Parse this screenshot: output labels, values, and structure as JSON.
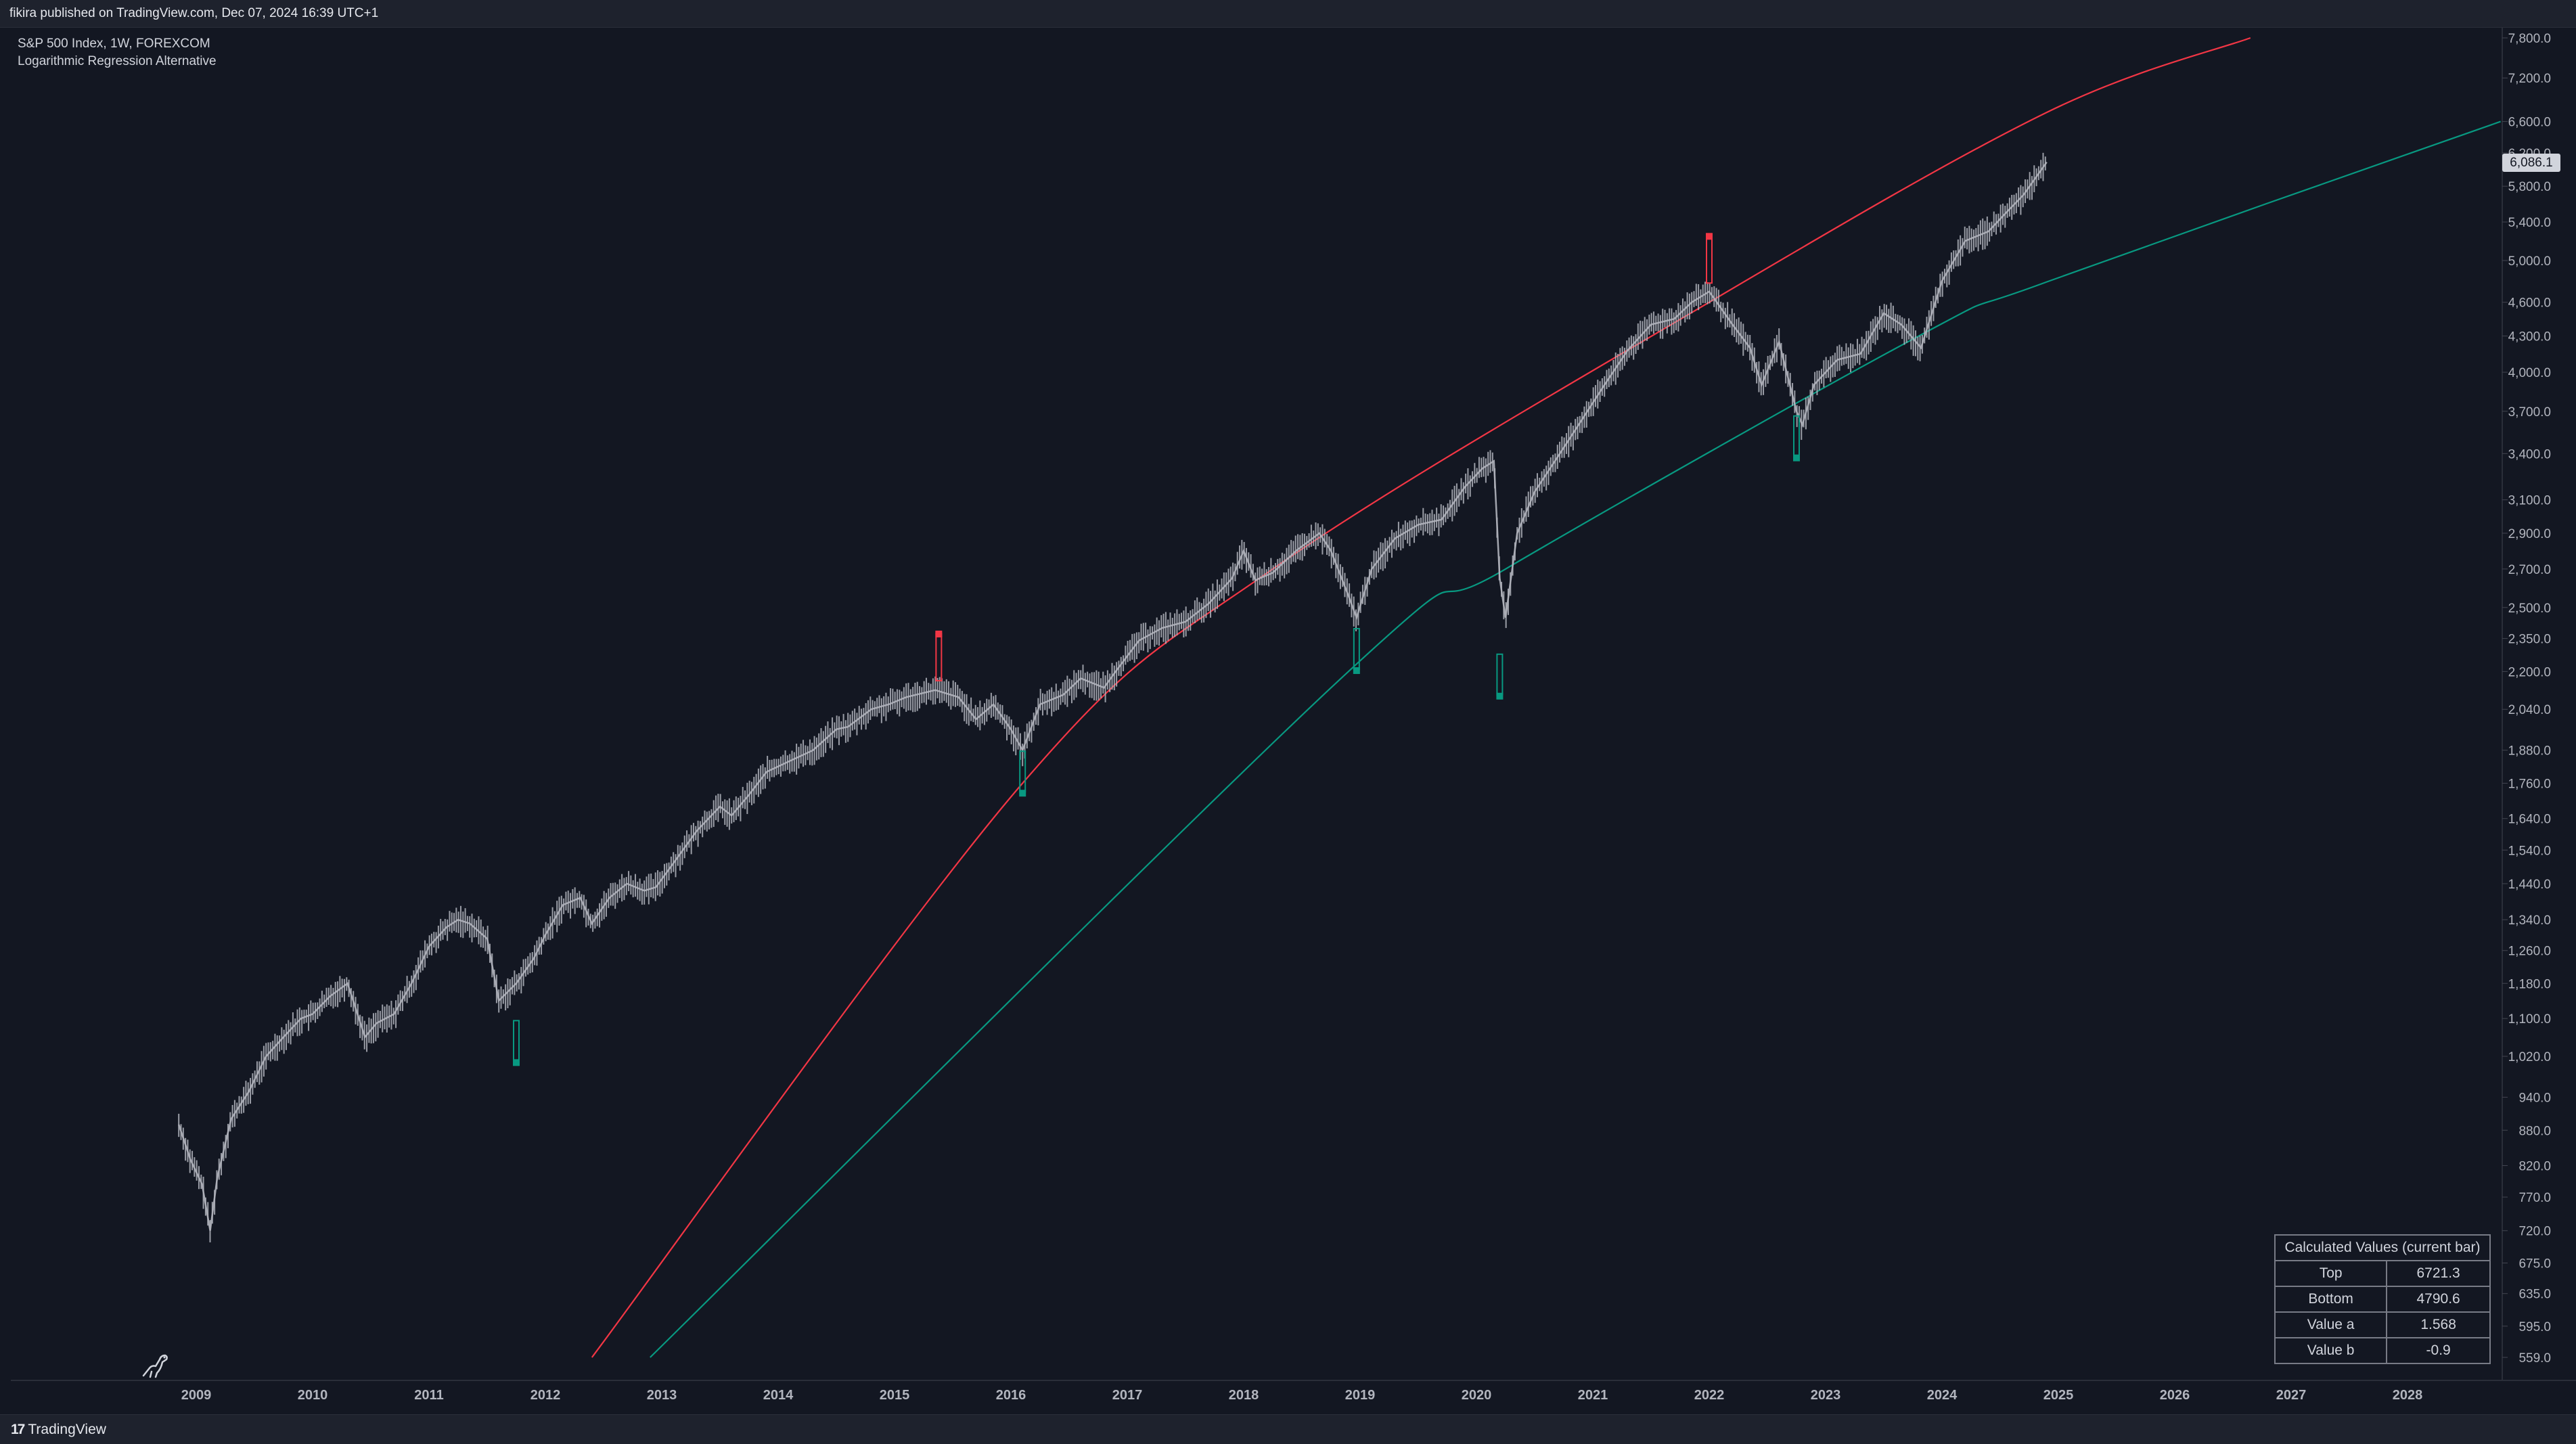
{
  "header": {
    "published_text": "fikira published on TradingView.com, Dec 07, 2024 16:39 UTC+1"
  },
  "legend": {
    "symbol_line": "S&P 500 Index, 1W, FOREXCOM",
    "indicator_line": "Logarithmic Regression Alternative"
  },
  "footer": {
    "brand_text": "TradingView",
    "brand_icon": "tradingview-logo-icon"
  },
  "current_price_label": "6,086.1",
  "colors": {
    "background": "#131722",
    "top_line": "#f23645",
    "bottom_line": "#089981",
    "candles": "#b2b5be",
    "axis_text": "#b2b5be"
  },
  "values_table": {
    "title": "Calculated Values (current bar)",
    "rows": [
      {
        "label": "Top",
        "value": "6721.3"
      },
      {
        "label": "Bottom",
        "value": "4790.6"
      },
      {
        "label": "Value a",
        "value": "1.568"
      },
      {
        "label": "Value b",
        "value": "-0.9"
      }
    ]
  },
  "chart_data": {
    "type": "line",
    "scale": "log",
    "x_tick_labels": [
      "2009",
      "2010",
      "2011",
      "2012",
      "2013",
      "2014",
      "2015",
      "2016",
      "2017",
      "2018",
      "2019",
      "2020",
      "2021",
      "2022",
      "2023",
      "2024",
      "2025",
      "2026",
      "2027",
      "2028"
    ],
    "y_tick_labels": [
      "7,800.0",
      "7,200.0",
      "6,600.0",
      "6,200.0",
      "5,800.0",
      "5,400.0",
      "5,000.0",
      "4,600.0",
      "4,300.0",
      "4,000.0",
      "3,700.0",
      "3,400.0",
      "3,100.0",
      "2,900.0",
      "2,700.0",
      "2,500.0",
      "2,350.0",
      "2,200.0",
      "2,040.0",
      "1,880.0",
      "1,760.0",
      "1,640.0",
      "1,540.0",
      "1,440.0",
      "1,340.0",
      "1,260.0",
      "1,180.0",
      "1,100.0",
      "1,020.0",
      "940.0",
      "880.0",
      "820.0",
      "770.0",
      "720.0",
      "675.0",
      "635.0",
      "595.0",
      "559.0"
    ],
    "y_tick_values": [
      7800,
      7200,
      6600,
      6200,
      5800,
      5400,
      5000,
      4600,
      4300,
      4000,
      3700,
      3400,
      3100,
      2900,
      2700,
      2500,
      2350,
      2200,
      2040,
      1880,
      1760,
      1640,
      1540,
      1440,
      1340,
      1260,
      1180,
      1100,
      1020,
      940,
      880,
      820,
      770,
      720,
      675,
      635,
      595,
      559
    ],
    "price_series": {
      "name": "S&P 500 Index",
      "x": [
        2008.85,
        2008.95,
        2009.05,
        2009.12,
        2009.18,
        2009.3,
        2009.45,
        2009.6,
        2009.75,
        2009.9,
        2010.0,
        2010.15,
        2010.3,
        2010.45,
        2010.55,
        2010.7,
        2010.85,
        2011.0,
        2011.15,
        2011.25,
        2011.35,
        2011.5,
        2011.6,
        2011.75,
        2011.9,
        2012.0,
        2012.15,
        2012.3,
        2012.4,
        2012.55,
        2012.7,
        2012.85,
        2012.95,
        2013.1,
        2013.3,
        2013.5,
        2013.6,
        2013.75,
        2013.9,
        2014.1,
        2014.3,
        2014.5,
        2014.6,
        2014.8,
        2014.95,
        2015.1,
        2015.35,
        2015.55,
        2015.7,
        2015.85,
        2016.0,
        2016.1,
        2016.25,
        2016.45,
        2016.6,
        2016.8,
        2016.9,
        2017.1,
        2017.3,
        2017.5,
        2017.7,
        2017.9,
        2018.0,
        2018.1,
        2018.25,
        2018.45,
        2018.65,
        2018.75,
        2018.9,
        2018.97,
        2019.1,
        2019.3,
        2019.5,
        2019.7,
        2019.9,
        2020.05,
        2020.15,
        2020.2,
        2020.25,
        2020.35,
        2020.5,
        2020.7,
        2020.9,
        2021.1,
        2021.3,
        2021.5,
        2021.7,
        2021.85,
        2022.0,
        2022.2,
        2022.35,
        2022.45,
        2022.6,
        2022.75,
        2022.8,
        2022.9,
        2023.1,
        2023.3,
        2023.5,
        2023.65,
        2023.82,
        2024.0,
        2024.2,
        2024.4,
        2024.55,
        2024.7,
        2024.9
      ],
      "close": [
        890,
        830,
        790,
        720,
        800,
        900,
        950,
        1020,
        1060,
        1100,
        1110,
        1150,
        1180,
        1060,
        1090,
        1110,
        1180,
        1270,
        1320,
        1340,
        1330,
        1290,
        1140,
        1180,
        1240,
        1300,
        1380,
        1400,
        1330,
        1400,
        1440,
        1420,
        1430,
        1500,
        1600,
        1680,
        1650,
        1720,
        1800,
        1840,
        1880,
        1960,
        1970,
        2040,
        2060,
        2090,
        2120,
        2090,
        2000,
        2060,
        1960,
        1880,
        2060,
        2100,
        2170,
        2130,
        2200,
        2340,
        2400,
        2430,
        2520,
        2650,
        2800,
        2640,
        2680,
        2800,
        2900,
        2800,
        2560,
        2450,
        2700,
        2870,
        2950,
        2980,
        3180,
        3300,
        3350,
        2650,
        2450,
        2900,
        3150,
        3380,
        3630,
        3900,
        4180,
        4400,
        4450,
        4600,
        4700,
        4400,
        4200,
        3900,
        4250,
        3700,
        3600,
        3900,
        4100,
        4150,
        4500,
        4400,
        4200,
        4800,
        5200,
        5300,
        5500,
        5700,
        6086
      ]
    },
    "top_band_anchors": {
      "name": "Top",
      "x": [
        2012.4,
        2016.1,
        2018.25,
        2022.0,
        2024.9,
        2026.65
      ],
      "y": [
        559,
        1760,
        2700,
        4600,
        6721.3,
        7800
      ]
    },
    "bottom_band_anchors": {
      "name": "Bottom",
      "x": [
        2012.9,
        2018.9,
        2020.25,
        2023.8,
        2024.9,
        2028.8
      ],
      "y": [
        559,
        2200,
        2700,
        4300,
        4790.6,
        6600
      ]
    },
    "bottom_signals": {
      "x": [
        2011.75,
        2016.1,
        2018.97,
        2020.2,
        2022.75
      ],
      "y": [
        1010,
        1730,
        2210,
        2100,
        3380
      ]
    },
    "top_signals": {
      "x": [
        2015.38,
        2022.0
      ],
      "y": [
        2160,
        4780
      ]
    }
  }
}
